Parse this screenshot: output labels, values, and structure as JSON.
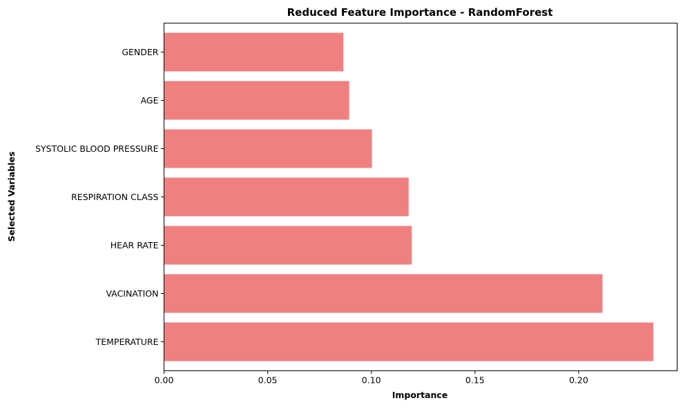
{
  "chart_data": {
    "type": "bar",
    "orientation": "horizontal",
    "title": "Reduced Feature Importance - RandomForest",
    "xlabel": "Importance",
    "ylabel": "Selected Variables",
    "categories": [
      "TEMPERATURE",
      "VACINATION",
      "HEAR RATE",
      "RESPIRATION CLASS",
      "SYSTOLIC BLOOD PRESSURE",
      "AGE",
      "GENDER"
    ],
    "values": [
      0.236,
      0.2115,
      0.1195,
      0.118,
      0.1003,
      0.0893,
      0.0865
    ],
    "xlim": [
      0,
      0.2475
    ],
    "xticks": [
      "0.00",
      "0.05",
      "0.10",
      "0.15",
      "0.20"
    ],
    "xtick_values": [
      0,
      0.05,
      0.1,
      0.15,
      0.2
    ],
    "bar_color": "#f08080",
    "grid": false,
    "legend": "none"
  }
}
